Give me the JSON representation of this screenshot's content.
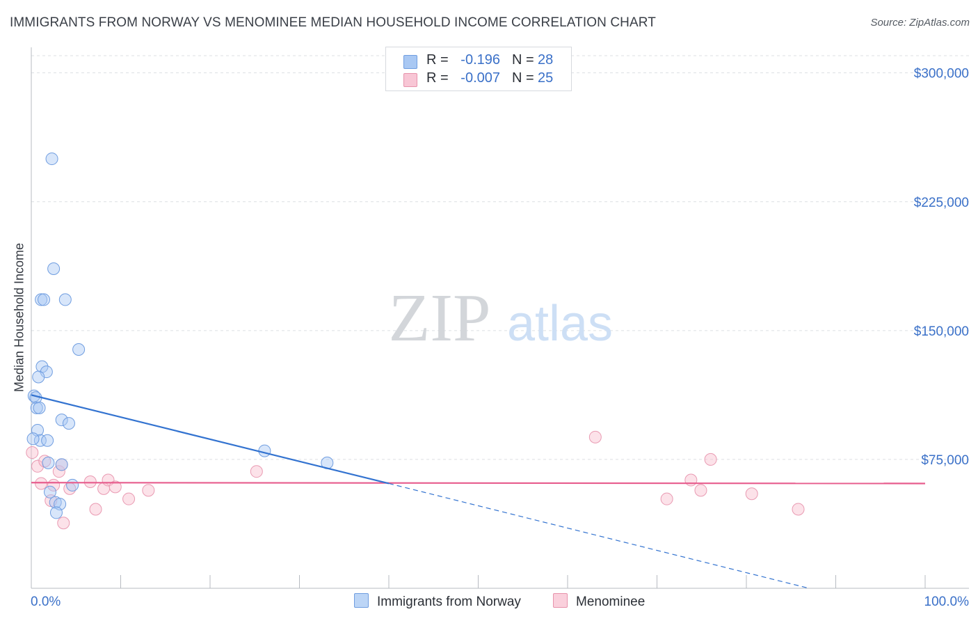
{
  "title": "IMMIGRANTS FROM NORWAY VS MENOMINEE MEDIAN HOUSEHOLD INCOME CORRELATION CHART",
  "source": "Source: ZipAtlas.com",
  "watermark": {
    "zip": "ZIP",
    "atlas": "atlas"
  },
  "stats": [
    {
      "r_label": "R =",
      "r_value": "-0.196",
      "n_label": "N =",
      "n_value": "28",
      "color": "#a9c8f3",
      "border": "#6f9de0"
    },
    {
      "r_label": "R =",
      "r_value": "-0.007",
      "n_label": "N =",
      "n_value": "25",
      "color": "#f8c6d5",
      "border": "#e792ab"
    }
  ],
  "legend": [
    {
      "label": "Immigrants from Norway",
      "color": "#bcd5f6",
      "border": "#6f9de0"
    },
    {
      "label": "Menominee",
      "color": "#fad0dc",
      "border": "#e792ab"
    }
  ],
  "colors": {
    "blue_line": "#3373d0",
    "pink_line": "#e75c8d",
    "axis_text": "#3a70c8",
    "grid": "#dcdfe3"
  },
  "chart_data": {
    "type": "scatter",
    "title": "IMMIGRANTS FROM NORWAY VS MENOMINEE MEDIAN HOUSEHOLD INCOME CORRELATION CHART",
    "xlabel": "",
    "ylabel": "Median Household Income",
    "xlim": [
      0,
      100
    ],
    "ylim": [
      0,
      310000
    ],
    "x_tick_labels": [
      "0.0%",
      "100.0%"
    ],
    "y_ticks": [
      75000,
      150000,
      225000,
      300000
    ],
    "y_tick_labels": [
      "$75,000",
      "$150,000",
      "$225,000",
      "$300,000"
    ],
    "grid": true,
    "series": [
      {
        "name": "Immigrants from Norway",
        "points": [
          [
            2.3,
            250000
          ],
          [
            2.5,
            186000
          ],
          [
            1.1,
            168000
          ],
          [
            1.4,
            168000
          ],
          [
            3.8,
            168000
          ],
          [
            5.3,
            139000
          ],
          [
            1.2,
            129000
          ],
          [
            1.7,
            126000
          ],
          [
            0.8,
            123000
          ],
          [
            0.3,
            112000
          ],
          [
            0.5,
            111000
          ],
          [
            0.6,
            105000
          ],
          [
            0.9,
            105000
          ],
          [
            3.4,
            98000
          ],
          [
            4.2,
            96000
          ],
          [
            0.7,
            92000
          ],
          [
            1.0,
            86000
          ],
          [
            1.8,
            86000
          ],
          [
            1.9,
            73000
          ],
          [
            3.4,
            72000
          ],
          [
            4.6,
            60000
          ],
          [
            2.1,
            56000
          ],
          [
            2.7,
            50000
          ],
          [
            3.2,
            49000
          ],
          [
            2.8,
            44000
          ],
          [
            26.1,
            80000
          ],
          [
            33.1,
            73000
          ],
          [
            0.2,
            87000
          ]
        ],
        "trend": {
          "x_start": 0,
          "y_start": 112500,
          "x_solid_end": 40.0,
          "y_solid_end": 61000,
          "x_dash_end": 87.0,
          "y_dash_end": 0
        }
      },
      {
        "name": "Menominee",
        "points": [
          [
            0.1,
            79000
          ],
          [
            0.7,
            71000
          ],
          [
            1.1,
            61000
          ],
          [
            1.5,
            74000
          ],
          [
            2.2,
            51000
          ],
          [
            2.5,
            60000
          ],
          [
            3.1,
            68000
          ],
          [
            3.4,
            72000
          ],
          [
            3.6,
            38000
          ],
          [
            4.3,
            58000
          ],
          [
            6.6,
            62000
          ],
          [
            7.2,
            46000
          ],
          [
            8.1,
            58000
          ],
          [
            8.6,
            63000
          ],
          [
            9.4,
            59000
          ],
          [
            10.9,
            52000
          ],
          [
            13.1,
            57000
          ],
          [
            25.2,
            68000
          ],
          [
            63.1,
            88000
          ],
          [
            71.1,
            52000
          ],
          [
            73.8,
            63000
          ],
          [
            74.9,
            57000
          ],
          [
            76.0,
            75000
          ],
          [
            80.6,
            55000
          ],
          [
            85.8,
            46000
          ]
        ],
        "trend": {
          "x_start": 0,
          "y_start": 61500,
          "x_end": 100,
          "y_end": 61000
        }
      }
    ]
  }
}
